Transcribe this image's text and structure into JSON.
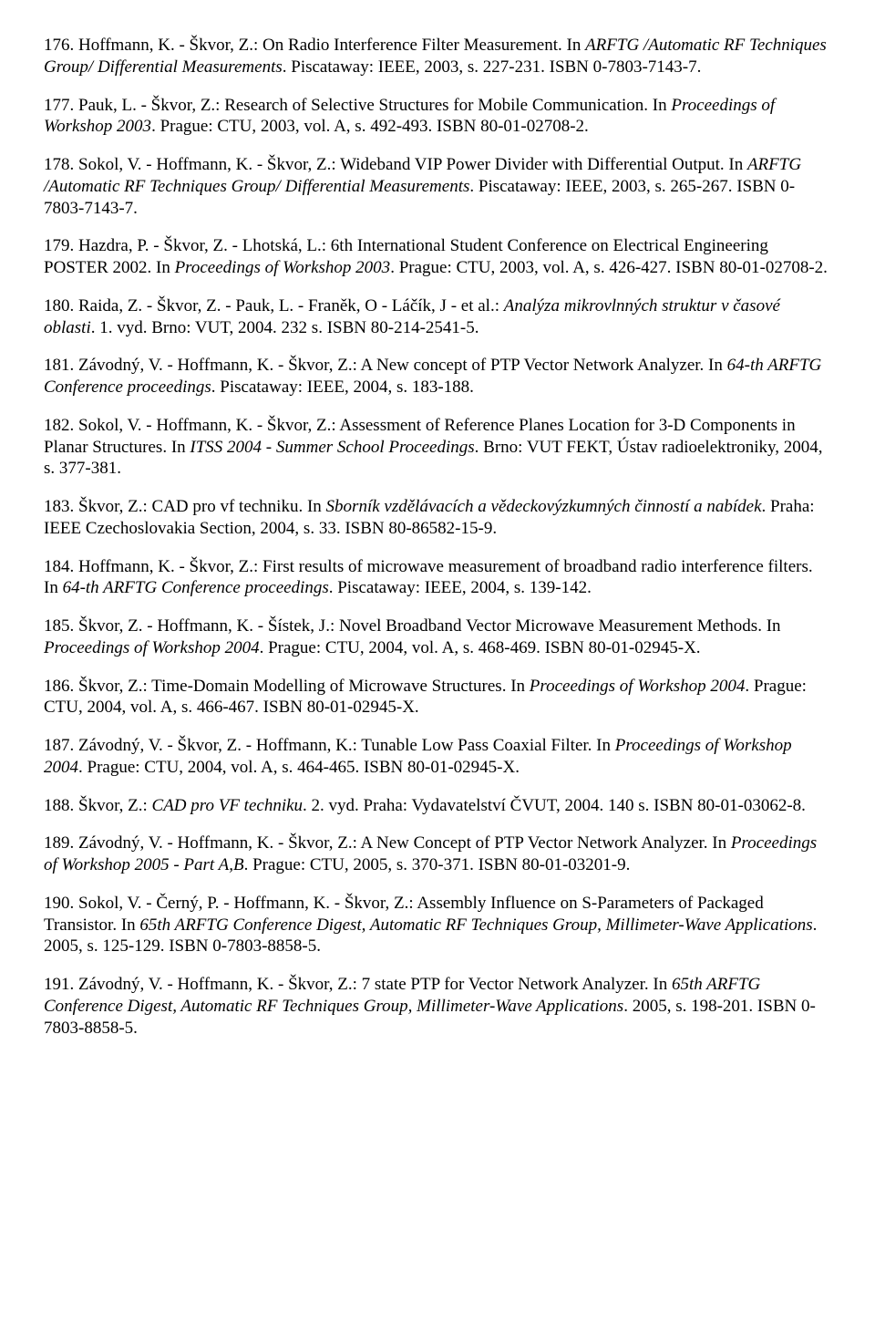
{
  "references": [
    {
      "num": "176.",
      "html": "Hoffmann, K. - Škvor, Z.: On Radio Interference Filter Measurement. In <span class=\"italic\">ARFTG /Automatic RF Techniques Group/ Differential Measurements</span>. Piscataway: IEEE, 2003, s. 227-231. ISBN 0-7803-7143-7."
    },
    {
      "num": "177.",
      "html": "Pauk, L. - Škvor, Z.: Research of Selective Structures for Mobile Communication. In <span class=\"italic\">Proceedings of Workshop 2003</span>. Prague: CTU, 2003, vol. A, s. 492-493. ISBN 80-01-02708-2."
    },
    {
      "num": "178.",
      "html": "Sokol, V. - Hoffmann, K. - Škvor, Z.: Wideband VIP Power Divider with Differential Output. In <span class=\"italic\">ARFTG /Automatic RF Techniques Group/ Differential Measurements</span>. Piscataway: IEEE, 2003, s. 265-267. ISBN 0-7803-7143-7."
    },
    {
      "num": "179.",
      "html": "Hazdra, P. - Škvor, Z. - Lhotská, L.: 6th International Student Conference on Electrical Engineering POSTER 2002. In <span class=\"italic\">Proceedings of Workshop 2003</span>. Prague: CTU, 2003, vol. A, s. 426-427. ISBN 80-01-02708-2."
    },
    {
      "num": "180.",
      "html": "Raida, Z. - Škvor, Z. - Pauk, L. - Franěk, O - Láčík, J - et al.: <span class=\"italic\">Analýza mikrovlnných struktur v časové oblasti</span>. 1. vyd. Brno: VUT, 2004. 232 s. ISBN 80-214-2541-5."
    },
    {
      "num": "181.",
      "html": "Závodný, V. - Hoffmann, K. - Škvor, Z.: A New concept of PTP Vector Network Analyzer. In <span class=\"italic\">64-th ARFTG Conference proceedings</span>. Piscataway: IEEE, 2004, s. 183-188."
    },
    {
      "num": "182.",
      "html": "Sokol, V. - Hoffmann, K. - Škvor, Z.: Assessment of Reference Planes Location for 3-D Components in Planar Structures. In <span class=\"italic\">ITSS 2004 - Summer School Proceedings</span>. Brno: VUT FEKT, Ústav radioelektroniky, 2004, s. 377-381."
    },
    {
      "num": "183.",
      "html": "Škvor, Z.: CAD pro vf techniku. In <span class=\"italic\">Sborník vzdělávacích a vědeckovýzkumných činností a nabídek</span>. Praha: IEEE Czechoslovakia Section, 2004, s. 33. ISBN 80-86582-15-9."
    },
    {
      "num": "184.",
      "html": "Hoffmann, K. - Škvor, Z.: First results of microwave measurement of broadband radio interference filters. In <span class=\"italic\">64-th ARFTG Conference proceedings</span>. Piscataway: IEEE, 2004, s. 139-142."
    },
    {
      "num": "185.",
      "html": "Škvor, Z. - Hoffmann, K. - Šístek, J.: Novel Broadband Vector Microwave Measurement Methods. In <span class=\"italic\">Proceedings of Workshop 2004</span>. Prague: CTU, 2004, vol. A, s. 468-469. ISBN 80-01-02945-X."
    },
    {
      "num": "186.",
      "html": "Škvor, Z.: Time-Domain Modelling of Microwave Structures. In <span class=\"italic\">Proceedings of Workshop 2004</span>. Prague: CTU, 2004, vol. A, s. 466-467. ISBN 80-01-02945-X."
    },
    {
      "num": "187.",
      "html": "Závodný, V. - Škvor, Z. - Hoffmann, K.: Tunable Low Pass Coaxial Filter. In <span class=\"italic\">Proceedings of Workshop 2004</span>. Prague: CTU, 2004, vol. A, s. 464-465. ISBN 80-01-02945-X."
    },
    {
      "num": "188.",
      "html": "Škvor, Z.: <span class=\"italic\">CAD pro VF techniku</span>. 2. vyd. Praha: Vydavatelství ČVUT, 2004. 140 s. ISBN 80-01-03062-8."
    },
    {
      "num": "189.",
      "html": "Závodný, V. - Hoffmann, K. - Škvor, Z.: A New Concept of PTP Vector Network Analyzer. In <span class=\"italic\">Proceedings of Workshop 2005 - Part A,B</span>. Prague: CTU, 2005, s. 370-371. ISBN 80-01-03201-9."
    },
    {
      "num": "190.",
      "html": "Sokol, V. - Černý, P. - Hoffmann, K. - Škvor, Z.: Assembly Influence on S-Parameters of Packaged Transistor. In <span class=\"italic\">65th ARFTG Conference Digest, Automatic RF Techniques Group, Millimeter-Wave Applications</span>. 2005, s. 125-129. ISBN 0-7803-8858-5."
    },
    {
      "num": "191.",
      "html": "Závodný, V. - Hoffmann, K. - Škvor, Z.: 7 state PTP for Vector Network Analyzer. In <span class=\"italic\">65th ARFTG Conference Digest, Automatic RF Techniques Group, Millimeter-Wave Applications</span>. 2005, s. 198-201. ISBN 0-7803-8858-5."
    }
  ]
}
